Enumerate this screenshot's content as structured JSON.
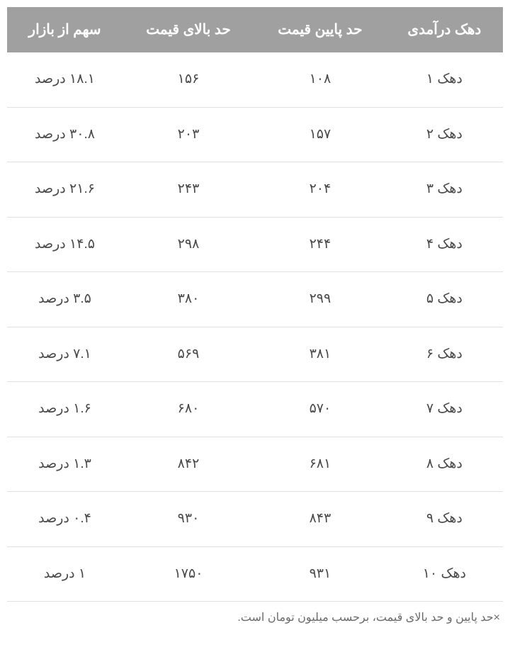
{
  "table": {
    "type": "table",
    "columns": [
      {
        "label": "دهک درآمدی",
        "width": "25%"
      },
      {
        "label": "حد پایین قیمت",
        "width": "25%"
      },
      {
        "label": "حد بالای قیمت",
        "width": "25%"
      },
      {
        "label": "سهم از بازار",
        "width": "25%"
      }
    ],
    "rows": [
      {
        "decile": "دهک ۱",
        "low": "۱۰۸",
        "high": "۱۵۶",
        "share": "۱۸.۱ درصد"
      },
      {
        "decile": "دهک ۲",
        "low": "۱۵۷",
        "high": "۲۰۳",
        "share": "۳۰.۸ درصد"
      },
      {
        "decile": "دهک ۳",
        "low": "۲۰۴",
        "high": "۲۴۳",
        "share": "۲۱.۶ درصد"
      },
      {
        "decile": "دهک ۴",
        "low": "۲۴۴",
        "high": "۲۹۸",
        "share": "۱۴.۵ درصد"
      },
      {
        "decile": "دهک ۵",
        "low": "۲۹۹",
        "high": "۳۸۰",
        "share": "۳.۵ درصد"
      },
      {
        "decile": "دهک ۶",
        "low": "۳۸۱",
        "high": "۵۶۹",
        "share": "۷.۱ درصد"
      },
      {
        "decile": "دهک ۷",
        "low": "۵۷۰",
        "high": "۶۸۰",
        "share": "۱.۶ درصد"
      },
      {
        "decile": "دهک ۸",
        "low": "۶۸۱",
        "high": "۸۴۲",
        "share": "۱.۳ درصد"
      },
      {
        "decile": "دهک ۹",
        "low": "۸۴۳",
        "high": "۹۳۰",
        "share": "۰.۴ درصد"
      },
      {
        "decile": "دهک ۱۰",
        "low": "۹۳۱",
        "high": "۱۷۵۰",
        "share": "۱ درصد"
      }
    ],
    "header_bg": "#a0a0a0",
    "header_text_color": "#ffffff",
    "cell_text_color": "#4a4a4a",
    "border_color": "#e0e0e0",
    "background_color": "#ffffff",
    "header_fontsize": 20,
    "cell_fontsize": 19
  },
  "footnote": "×حد پایین و حد بالای قیمت، برحسب میلیون تومان است."
}
